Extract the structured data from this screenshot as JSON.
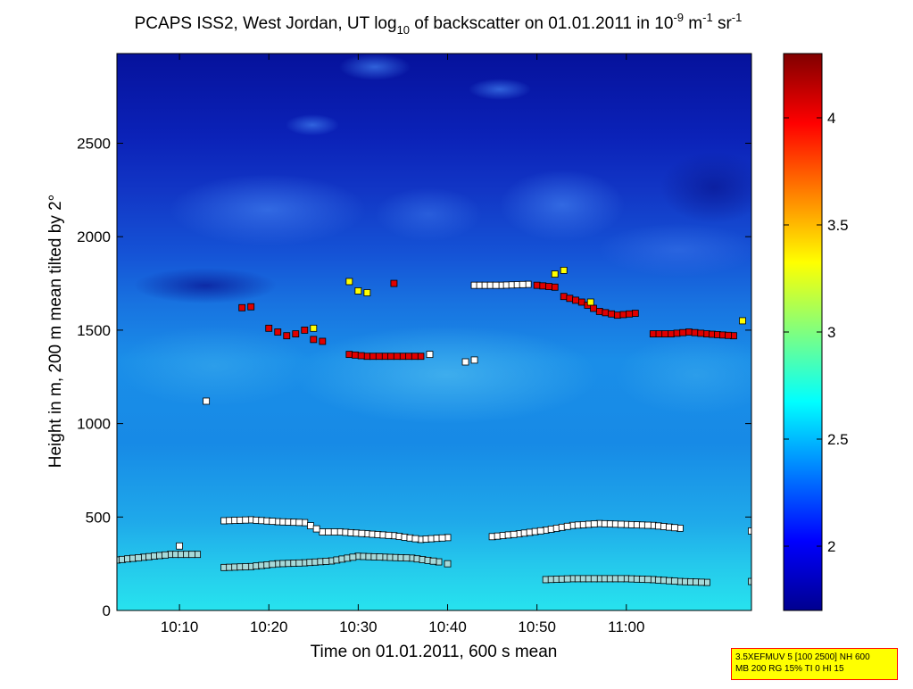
{
  "chart_data": {
    "type": "heatmap",
    "title": "PCAPS ISS2, West Jordan, UT log10 of backscatter on 01.01.2011 in 10-9 m-1 sr-1",
    "title_parts": {
      "a": "PCAPS ISS2, West Jordan, UT log",
      "sub": "10",
      "b": " of backscatter on 01.01.2011 in 10",
      "sup1": "-9",
      "c": " m",
      "sup2": "-1",
      "d": " sr",
      "sup3": "-1"
    },
    "xlabel": "Time on 01.01.2011, 600 s mean",
    "ylabel": "Height in m, 200 m mean tilted by 2°",
    "xlim": [
      "10:03",
      "11:14"
    ],
    "ylim": [
      0,
      2980
    ],
    "x_ticks": [
      "10:10",
      "10:20",
      "10:30",
      "10:40",
      "10:50",
      "11:00"
    ],
    "y_ticks": [
      0,
      500,
      1000,
      1500,
      2000,
      2500
    ],
    "colorbar": {
      "range": [
        1.7,
        4.3
      ],
      "ticks": [
        2,
        2.5,
        3,
        3.5,
        4
      ],
      "tick_labels": [
        "2",
        "2.5",
        "3",
        "3.5",
        "4"
      ]
    },
    "layers": [
      {
        "name": "cloud-base",
        "color": "#e00000",
        "points": [
          [
            "10:17",
            1620
          ],
          [
            "10:18",
            1625
          ],
          [
            "10:20",
            1510
          ],
          [
            "10:21",
            1490
          ],
          [
            "10:22",
            1470
          ],
          [
            "10:23",
            1480
          ],
          [
            "10:24",
            1500
          ],
          [
            "10:25",
            1450
          ],
          [
            "10:26",
            1440
          ],
          [
            "10:29",
            1370
          ],
          [
            "10:31",
            1360
          ],
          [
            "10:33",
            1360
          ],
          [
            "10:35",
            1360
          ],
          [
            "10:37",
            1360
          ],
          [
            "10:34",
            1750
          ],
          [
            "10:50",
            1740
          ],
          [
            "10:52",
            1730
          ],
          [
            "10:53",
            1680
          ],
          [
            "10:55",
            1650
          ],
          [
            "10:57",
            1600
          ],
          [
            "10:59",
            1580
          ],
          [
            "11:01",
            1590
          ],
          [
            "11:03",
            1480
          ],
          [
            "11:05",
            1480
          ],
          [
            "11:07",
            1490
          ],
          [
            "11:09",
            1480
          ],
          [
            "11:12",
            1470
          ]
        ]
      },
      {
        "name": "cloud-top",
        "color": "#ffff00",
        "points": [
          [
            "10:25",
            1510
          ],
          [
            "10:29",
            1760
          ],
          [
            "10:30",
            1710
          ],
          [
            "10:31",
            1700
          ],
          [
            "10:52",
            1800
          ],
          [
            "10:53",
            1820
          ],
          [
            "10:56",
            1650
          ],
          [
            "11:13",
            1550
          ]
        ]
      },
      {
        "name": "aerosol-layer",
        "color": "#ffffff",
        "points": [
          [
            "10:13",
            1120
          ],
          [
            "10:10",
            345
          ],
          [
            "10:15",
            480
          ],
          [
            "10:18",
            485
          ],
          [
            "10:21",
            475
          ],
          [
            "10:24",
            470
          ],
          [
            "10:26",
            420
          ],
          [
            "10:28",
            420
          ],
          [
            "10:31",
            410
          ],
          [
            "10:34",
            400
          ],
          [
            "10:37",
            380
          ],
          [
            "10:40",
            390
          ],
          [
            "10:42",
            1330
          ],
          [
            "10:43",
            1740
          ],
          [
            "10:46",
            1740
          ],
          [
            "10:49",
            1745
          ],
          [
            "10:45",
            395
          ],
          [
            "10:48",
            410
          ],
          [
            "10:51",
            430
          ],
          [
            "10:54",
            455
          ],
          [
            "10:57",
            465
          ],
          [
            "11:00",
            460
          ],
          [
            "11:03",
            455
          ],
          [
            "11:06",
            440
          ],
          [
            "11:14",
            425
          ],
          [
            "10:43",
            1340
          ],
          [
            "10:38",
            1370
          ]
        ]
      },
      {
        "name": "mixing-layer",
        "color": "#a6d9d9",
        "points": [
          [
            "10:03",
            270
          ],
          [
            "10:06",
            285
          ],
          [
            "10:09",
            300
          ],
          [
            "10:12",
            300
          ],
          [
            "10:15",
            230
          ],
          [
            "10:18",
            235
          ],
          [
            "10:21",
            250
          ],
          [
            "10:24",
            255
          ],
          [
            "10:27",
            265
          ],
          [
            "10:30",
            290
          ],
          [
            "10:33",
            285
          ],
          [
            "10:36",
            280
          ],
          [
            "10:39",
            260
          ],
          [
            "10:40",
            250
          ],
          [
            "10:51",
            165
          ],
          [
            "10:54",
            170
          ],
          [
            "10:57",
            170
          ],
          [
            "11:00",
            170
          ],
          [
            "11:03",
            165
          ],
          [
            "11:06",
            155
          ],
          [
            "11:09",
            150
          ],
          [
            "11:14",
            155
          ]
        ]
      }
    ]
  },
  "info_box": {
    "line1": "3.5XEFMUV 5 [100 2500] NH 600",
    "line2": "MB 200 RG 15% TI 0 HI 15"
  }
}
